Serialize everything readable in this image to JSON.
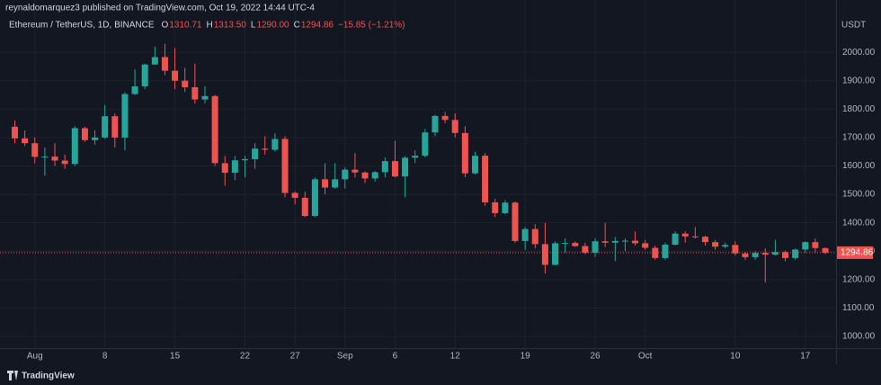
{
  "header": {
    "publisher": "reynaldomarquez3 published on TradingView.com, Oct 19, 2022 14:44 UTC-4",
    "symbol": "Ethereum / TetherUS, 1D, BINANCE",
    "ohlc": [
      {
        "key": "O",
        "text": "1310.71"
      },
      {
        "key": "H",
        "text": "1313.50"
      },
      {
        "key": "L",
        "text": "1290.00"
      },
      {
        "key": "C",
        "text": "1294.86"
      }
    ],
    "change": "−15.85 (−1.21%)"
  },
  "footer": "TradingView",
  "chart_data": {
    "type": "candlestick",
    "y_unit": "USDT",
    "up_color": "#26a69a",
    "down_color": "#ef5350",
    "grid": true,
    "categories": [
      null,
      null,
      "Aug",
      null,
      null,
      null,
      null,
      null,
      null,
      "8",
      null,
      null,
      null,
      null,
      null,
      null,
      "15",
      null,
      null,
      null,
      null,
      null,
      null,
      "22",
      null,
      null,
      null,
      null,
      "27",
      null,
      null,
      null,
      null,
      "Sep",
      null,
      null,
      null,
      null,
      "6",
      null,
      null,
      null,
      null,
      null,
      "12",
      null,
      null,
      null,
      null,
      null,
      null,
      "19",
      null,
      null,
      null,
      null,
      null,
      null,
      "26",
      null,
      null,
      null,
      null,
      "Oct",
      null,
      null,
      null,
      null,
      null,
      null,
      null,
      null,
      "10",
      null,
      null,
      null,
      null,
      null,
      null,
      "17",
      null,
      null
    ],
    "open": [
      1738,
      1697,
      1680,
      1632,
      1633,
      1619,
      1607,
      1733,
      1691,
      1700,
      1775,
      1700,
      1853,
      1880,
      1957,
      1983,
      1935,
      1900,
      1877,
      1834,
      1846,
      1610,
      1576,
      1620,
      1624,
      1661,
      1657,
      1695,
      1505,
      1488,
      1424,
      1553,
      1524,
      1553,
      1587,
      1577,
      1556,
      1578,
      1617,
      1563,
      1629,
      1636,
      1718,
      1776,
      1762,
      1716,
      1574,
      1636,
      1472,
      1434,
      1471,
      1336,
      1378,
      1325,
      1252,
      1328,
      1329,
      1318,
      1295,
      1335,
      1330,
      1336,
      1337,
      1328,
      1312,
      1276,
      1323,
      1362,
      1352,
      1351,
      1332,
      1316,
      1322,
      1292,
      1279,
      1294,
      1288,
      1297,
      1276,
      1306,
      1332,
      1310.71
    ],
    "high": [
      1760,
      1725,
      1700,
      1665,
      1680,
      1640,
      1740,
      1738,
      1725,
      1815,
      1785,
      1860,
      1940,
      1960,
      2020,
      2030,
      2015,
      1945,
      1960,
      1880,
      1850,
      1635,
      1635,
      1635,
      1680,
      1705,
      1715,
      1705,
      1510,
      1510,
      1560,
      1610,
      1610,
      1595,
      1645,
      1580,
      1582,
      1630,
      1688,
      1635,
      1655,
      1730,
      1780,
      1790,
      1785,
      1740,
      1650,
      1645,
      1485,
      1480,
      1475,
      1385,
      1395,
      1400,
      1335,
      1345,
      1335,
      1330,
      1345,
      1400,
      1350,
      1345,
      1370,
      1340,
      1320,
      1330,
      1370,
      1370,
      1385,
      1355,
      1340,
      1330,
      1335,
      1298,
      1300,
      1310,
      1340,
      1302,
      1310,
      1335,
      1345,
      1313.5
    ],
    "low": [
      1680,
      1670,
      1610,
      1565,
      1600,
      1590,
      1600,
      1685,
      1675,
      1695,
      1665,
      1655,
      1850,
      1870,
      1955,
      1920,
      1870,
      1860,
      1820,
      1820,
      1600,
      1530,
      1550,
      1560,
      1590,
      1640,
      1650,
      1490,
      1465,
      1420,
      1420,
      1500,
      1520,
      1520,
      1560,
      1540,
      1545,
      1560,
      1560,
      1490,
      1610,
      1630,
      1705,
      1750,
      1700,
      1560,
      1570,
      1460,
      1420,
      1430,
      1330,
      1305,
      1310,
      1222,
      1250,
      1295,
      1315,
      1290,
      1280,
      1315,
      1265,
      1300,
      1320,
      1305,
      1270,
      1270,
      1320,
      1330,
      1345,
      1320,
      1305,
      1310,
      1285,
      1270,
      1270,
      1190,
      1285,
      1265,
      1270,
      1295,
      1295,
      1290
    ],
    "close": [
      1697,
      1680,
      1632,
      1633,
      1619,
      1607,
      1733,
      1691,
      1700,
      1775,
      1700,
      1853,
      1880,
      1957,
      1983,
      1935,
      1900,
      1877,
      1834,
      1846,
      1610,
      1576,
      1620,
      1624,
      1661,
      1657,
      1695,
      1505,
      1488,
      1424,
      1553,
      1524,
      1553,
      1587,
      1577,
      1556,
      1578,
      1617,
      1563,
      1629,
      1636,
      1718,
      1776,
      1762,
      1716,
      1574,
      1636,
      1472,
      1434,
      1471,
      1336,
      1378,
      1325,
      1252,
      1328,
      1329,
      1318,
      1295,
      1335,
      1330,
      1336,
      1337,
      1328,
      1312,
      1276,
      1323,
      1362,
      1352,
      1351,
      1332,
      1316,
      1322,
      1292,
      1279,
      1294,
      1288,
      1297,
      1276,
      1306,
      1332,
      1311,
      1294.86
    ],
    "last_price": 1294.86,
    "ylim": [
      959,
      2184
    ],
    "yticks": [
      {
        "value": 1000,
        "label": "1000.00"
      },
      {
        "value": 1100,
        "label": "1100.00"
      },
      {
        "value": 1200,
        "label": "1200.00"
      },
      {
        "value": 1300,
        "label": "1300.00"
      },
      {
        "value": 1400,
        "label": "1400.00"
      },
      {
        "value": 1500,
        "label": "1500.00"
      },
      {
        "value": 1600,
        "label": "1600.00"
      },
      {
        "value": 1700,
        "label": "1700.00"
      },
      {
        "value": 1800,
        "label": "1800.00"
      },
      {
        "value": 1900,
        "label": "1900.00"
      },
      {
        "value": 2000,
        "label": "2000.00"
      }
    ]
  }
}
